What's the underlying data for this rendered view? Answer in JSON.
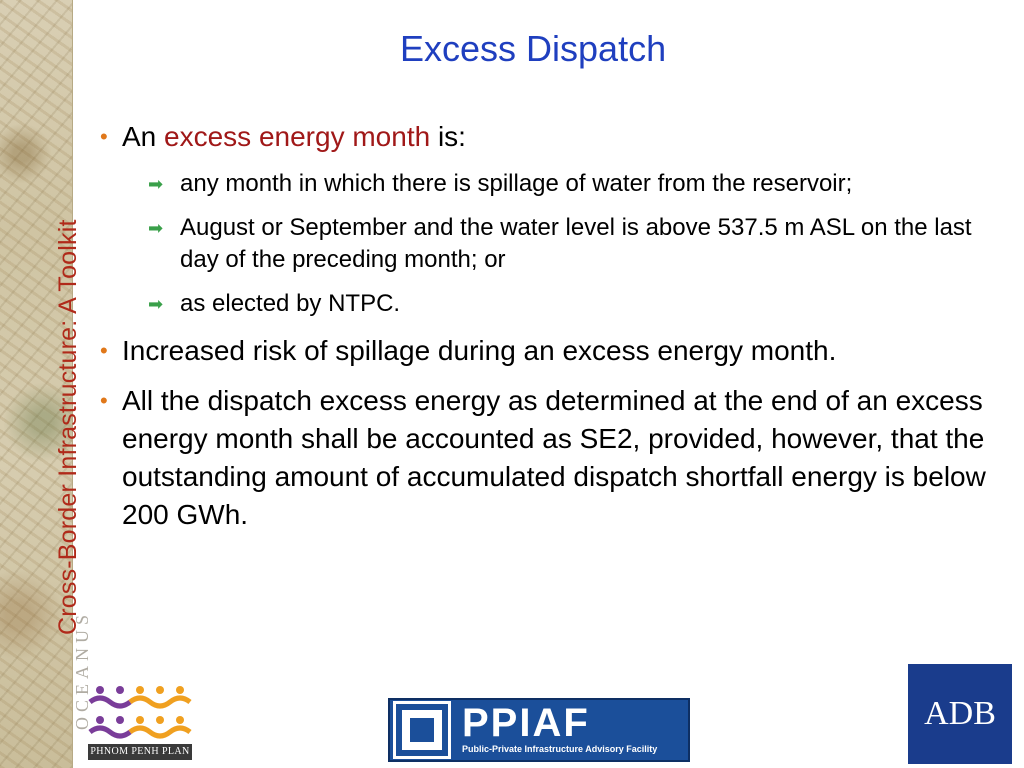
{
  "sidebar": {
    "title": "Cross-Border Infrastructure: A Toolkit",
    "background_text": "OCEANUS"
  },
  "slide": {
    "title": "Excess Dispatch",
    "bullets": [
      {
        "prefix": "An ",
        "highlight": "excess energy month",
        "suffix": " is:",
        "sub_items": [
          "any month in which there is spillage of water from the reservoir;",
          "August or September and the water level is above 537.5 m ASL on the last day of the preceding month; or",
          "as elected by NTPC."
        ]
      },
      {
        "text": "Increased risk of spillage during an excess energy month."
      },
      {
        "text": "All the dispatch excess energy as determined at the end of an excess energy month shall be accounted as SE2, provided, however, that the outstanding amount of accumulated dispatch shortfall energy is below 200 GWh."
      }
    ]
  },
  "logos": {
    "phnom_penh_plan": "PHNOM PENH PLAN",
    "ppiaf": "PPIAF",
    "ppiaf_subtitle": "Public-Private Infrastructure Advisory Facility",
    "adb": "ADB"
  },
  "colors": {
    "title": "#1f3fbf",
    "highlight": "#a01818",
    "bullet": "#e0781a",
    "sub_arrow": "#3aa04a",
    "sidebar_title": "#b02a1a"
  }
}
